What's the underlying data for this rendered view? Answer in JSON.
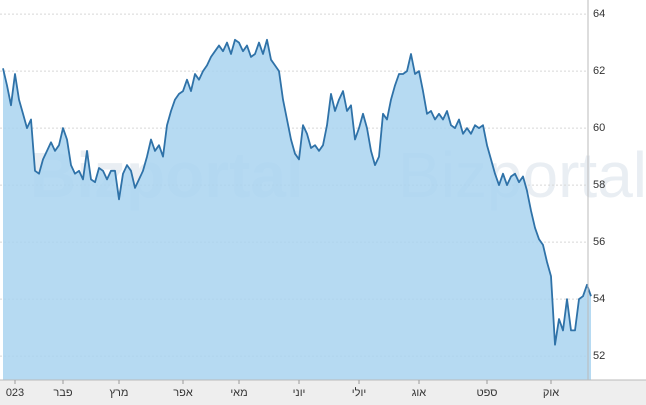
{
  "chart_data": {
    "type": "area",
    "watermark": "Bizportal",
    "color": "#2f72a8",
    "fill": "#a9d3f0",
    "ylim": [
      51.16,
      64.39
    ],
    "yticks": [
      52,
      54,
      56,
      58,
      60,
      62,
      64
    ],
    "grid": true,
    "xlim": [
      -0.75,
      146.25
    ],
    "xticks": [
      {
        "value": 3,
        "label": "023"
      },
      {
        "value": 15,
        "label": "פבר"
      },
      {
        "value": 29,
        "label": "מרץ"
      },
      {
        "value": 45,
        "label": "אפר"
      },
      {
        "value": 59,
        "label": "מאי"
      },
      {
        "value": 74,
        "label": "יוני"
      },
      {
        "value": 89,
        "label": "יולי"
      },
      {
        "value": 104,
        "label": "אוג"
      },
      {
        "value": 121,
        "label": "ספט"
      },
      {
        "value": 137,
        "label": "אוק"
      }
    ],
    "values": [
      62.1,
      61.5,
      60.8,
      61.9,
      61.0,
      60.5,
      60.0,
      60.3,
      58.5,
      58.4,
      58.9,
      59.2,
      59.5,
      59.2,
      59.4,
      60.0,
      59.6,
      58.7,
      58.4,
      58.5,
      58.2,
      59.2,
      58.2,
      58.1,
      58.6,
      58.5,
      58.2,
      58.5,
      58.5,
      57.5,
      58.4,
      58.7,
      58.5,
      57.9,
      58.2,
      58.5,
      59.0,
      59.6,
      59.2,
      59.4,
      59.0,
      60.1,
      60.6,
      61.0,
      61.2,
      61.3,
      61.7,
      61.3,
      61.9,
      61.7,
      62.0,
      62.2,
      62.5,
      62.7,
      62.9,
      62.7,
      63.0,
      62.6,
      63.1,
      63.0,
      62.7,
      62.9,
      62.5,
      62.6,
      63.0,
      62.6,
      63.1,
      62.4,
      62.2,
      62.0,
      61.0,
      60.3,
      59.6,
      59.1,
      58.9,
      60.1,
      59.8,
      59.3,
      59.4,
      59.2,
      59.4,
      60.1,
      61.2,
      60.6,
      61.0,
      61.3,
      60.6,
      60.8,
      59.6,
      60.0,
      60.5,
      60.0,
      59.2,
      58.7,
      59.0,
      60.5,
      60.3,
      61.0,
      61.5,
      61.9,
      61.9,
      62.0,
      62.6,
      61.9,
      62.0,
      61.3,
      60.5,
      60.6,
      60.3,
      60.5,
      60.3,
      60.6,
      60.1,
      60.0,
      60.3,
      59.8,
      60.0,
      59.8,
      60.1,
      60.0,
      60.1,
      59.4,
      58.9,
      58.4,
      58.0,
      58.4,
      58.0,
      58.3,
      58.4,
      58.1,
      58.3,
      57.8,
      57.1,
      56.5,
      56.1,
      55.9,
      55.3,
      54.8,
      52.4,
      53.3,
      52.9,
      54.0,
      52.9,
      52.9,
      54.0,
      54.1,
      54.5,
      54.1
    ]
  }
}
